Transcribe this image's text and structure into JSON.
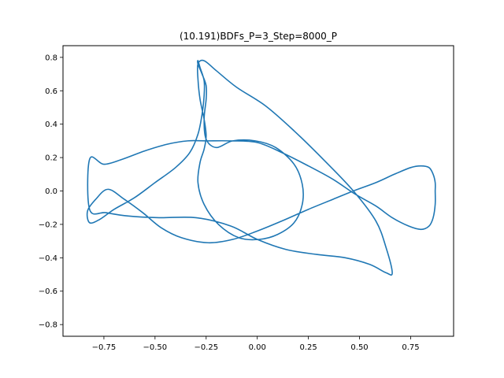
{
  "chart_data": {
    "type": "line",
    "title": "(10.191)BDFs_P=3_Step=8000_P",
    "xlabel": "",
    "ylabel": "",
    "xlim": [
      -0.95,
      0.96
    ],
    "ylim": [
      -0.87,
      0.87
    ],
    "x_ticks": [
      "−0.75",
      "−0.50",
      "−0.25",
      "0.00",
      "0.25",
      "0.50",
      "0.75"
    ],
    "x_tick_values": [
      -0.75,
      -0.5,
      -0.25,
      0.0,
      0.25,
      0.5,
      0.75
    ],
    "y_ticks": [
      "−0.8",
      "−0.6",
      "−0.4",
      "−0.2",
      "0.0",
      "0.2",
      "0.4",
      "0.6",
      "0.8"
    ],
    "y_tick_values": [
      -0.8,
      -0.6,
      -0.4,
      -0.2,
      0.0,
      0.2,
      0.4,
      0.6,
      0.8
    ],
    "grid": false,
    "line_color": "#1f77b4",
    "series": [
      {
        "x": [
          0.87,
          0.87,
          0.86,
          0.84,
          0.8,
          0.75,
          0.67,
          0.58,
          0.47,
          0.37,
          0.25,
          0.12,
          0.0,
          -0.12,
          -0.24,
          -0.37,
          -0.47,
          -0.56,
          -0.65,
          -0.73,
          -0.79,
          -0.83,
          -0.82,
          -0.77,
          -0.7,
          -0.6,
          -0.5,
          -0.4,
          -0.33,
          -0.29,
          -0.27,
          -0.26,
          -0.26,
          -0.28,
          -0.29,
          -0.29,
          -0.27,
          -0.25,
          -0.25,
          -0.26,
          -0.25,
          -0.2,
          -0.12,
          -0.01,
          0.09,
          0.18,
          0.22,
          0.22,
          0.18,
          0.1,
          0.01,
          -0.09,
          -0.19,
          -0.26,
          -0.29,
          -0.28,
          -0.26,
          -0.25,
          -0.26,
          -0.28,
          -0.29,
          -0.29,
          -0.26,
          -0.2,
          -0.1,
          0.04,
          0.18,
          0.33,
          0.47,
          0.58,
          0.63,
          0.66,
          0.63,
          0.55,
          0.43,
          0.29,
          0.14,
          0.0,
          -0.13,
          -0.3,
          -0.48,
          -0.63,
          -0.74,
          -0.82,
          -0.82,
          -0.75,
          -0.66,
          -0.55,
          -0.44,
          -0.34,
          -0.25,
          -0.13,
          0.0,
          0.12,
          0.25,
          0.37,
          0.48,
          0.58,
          0.66,
          0.74,
          0.8,
          0.84,
          0.86,
          0.87,
          0.87
        ],
        "y": [
          0.0,
          0.05,
          0.1,
          0.14,
          0.15,
          0.14,
          0.1,
          0.05,
          0.0,
          -0.05,
          -0.11,
          -0.18,
          -0.24,
          -0.29,
          -0.31,
          -0.28,
          -0.22,
          -0.13,
          -0.05,
          0.01,
          -0.05,
          -0.12,
          -0.19,
          -0.17,
          -0.11,
          -0.04,
          0.05,
          0.14,
          0.23,
          0.34,
          0.46,
          0.57,
          0.66,
          0.74,
          0.78,
          0.76,
          0.7,
          0.63,
          0.55,
          0.43,
          0.31,
          0.26,
          0.3,
          0.3,
          0.26,
          0.16,
          0.04,
          -0.08,
          -0.19,
          -0.26,
          -0.29,
          -0.28,
          -0.2,
          -0.08,
          0.05,
          0.17,
          0.25,
          0.33,
          0.43,
          0.55,
          0.67,
          0.76,
          0.78,
          0.72,
          0.62,
          0.51,
          0.36,
          0.18,
          0.0,
          -0.18,
          -0.34,
          -0.49,
          -0.49,
          -0.44,
          -0.4,
          -0.38,
          -0.35,
          -0.29,
          -0.21,
          -0.16,
          -0.16,
          -0.15,
          -0.13,
          -0.11,
          0.19,
          0.16,
          0.19,
          0.24,
          0.28,
          0.3,
          0.3,
          0.3,
          0.29,
          0.23,
          0.15,
          0.07,
          -0.02,
          -0.09,
          -0.16,
          -0.21,
          -0.23,
          -0.21,
          -0.16,
          -0.08,
          0.0
        ],
        "name": ""
      }
    ]
  }
}
